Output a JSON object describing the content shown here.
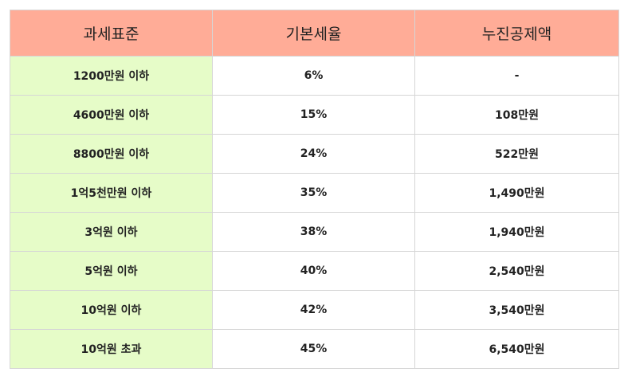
{
  "table": {
    "headers": [
      "과세표준",
      "기본세율",
      "누진공제액"
    ],
    "rows": [
      [
        "1200만원 이하",
        "6%",
        "-"
      ],
      [
        "4600만원 이하",
        "15%",
        "108만원"
      ],
      [
        "8800만원 이하",
        "24%",
        "522만원"
      ],
      [
        "1억5천만원 이하",
        "35%",
        "1,490만원"
      ],
      [
        "3억원 이하",
        "38%",
        "1,940만원"
      ],
      [
        "5억원 이하",
        "40%",
        "2,540만원"
      ],
      [
        "10억원 이하",
        "42%",
        "3,540만원"
      ],
      [
        "10억원 초과",
        "45%",
        "6,540만원"
      ]
    ]
  },
  "colors": {
    "header_background": "#ffac97",
    "first_column_background": "#e6fcc8",
    "border": "#d6d6d6"
  }
}
